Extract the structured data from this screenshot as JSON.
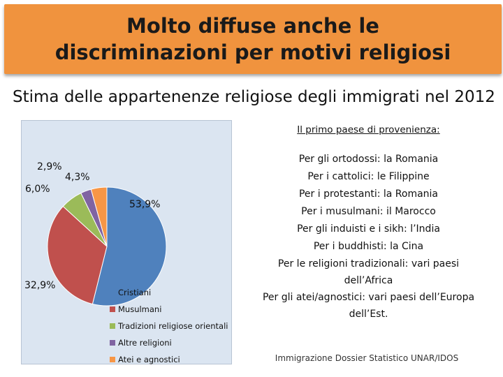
{
  "slide": {
    "title": "Molto diffuse anche le discriminazioni per motivi religiosi",
    "subtitle": "Stima delle appartenenze religiose degli immigrati  nel 2012",
    "source": "Immigrazione Dossier Statistico UNAR/IDOS"
  },
  "chart_data": {
    "type": "pie",
    "slices": [
      {
        "name": "Cristiani",
        "value": 53.9,
        "label": "53,9%",
        "color": "#4f81bd"
      },
      {
        "name": "Musulmani",
        "value": 32.9,
        "label": "32,9%",
        "color": "#c0504d"
      },
      {
        "name": "Tradizioni religiose orientali",
        "value": 6.0,
        "label": "6,0%",
        "color": "#9bbb59"
      },
      {
        "name": "Altre religioni",
        "value": 2.9,
        "label": "2,9%",
        "color": "#8064a2"
      },
      {
        "name": "Atei e agnostici",
        "value": 4.3,
        "label": "4,3%",
        "color": "#f79646"
      }
    ],
    "legend_position": "bottom-right"
  },
  "provenance": {
    "heading": "Il primo paese di provenienza:",
    "lines": [
      "Per gli ortodossi: la Romania",
      "Per i cattolici: le Filippine",
      "Per i protestanti: la Romania",
      "Per i musulmani: il Marocco",
      "Per gli induisti e i sikh: l’India",
      "Per i buddhisti: la Cina",
      "Per le religioni tradizionali: vari paesi",
      "dell’Africa",
      "Per gli atei/agnostici:  vari paesi dell’Europa",
      "dell’Est."
    ]
  }
}
